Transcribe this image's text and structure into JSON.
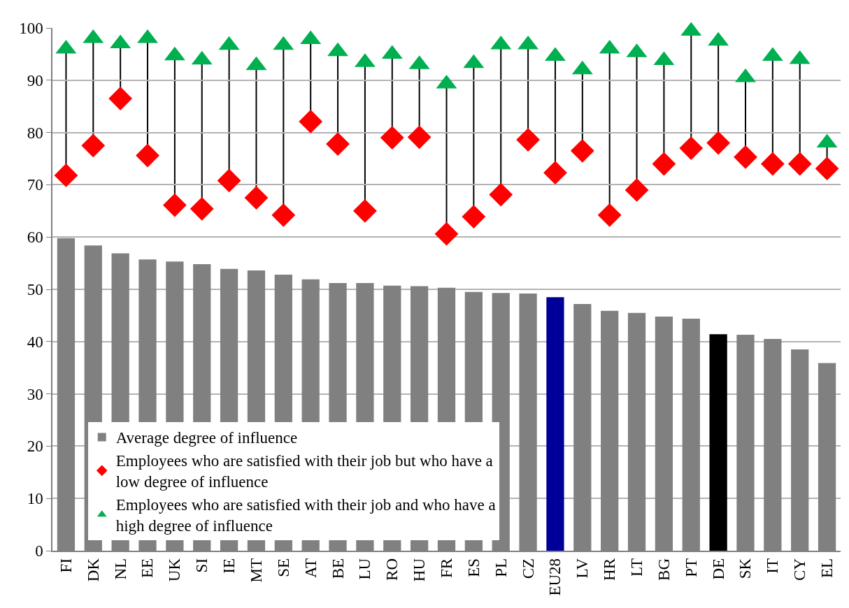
{
  "chart_data": {
    "type": "bar",
    "categories": [
      "FI",
      "DK",
      "NL",
      "EE",
      "UK",
      "SI",
      "IE",
      "MT",
      "SE",
      "AT",
      "BE",
      "LU",
      "RO",
      "HU",
      "FR",
      "ES",
      "PL",
      "CZ",
      "EU28",
      "LV",
      "HR",
      "LT",
      "BG",
      "PT",
      "DE",
      "SK",
      "IT",
      "CY",
      "EL"
    ],
    "series": [
      {
        "name": "Average degree of influence",
        "colors": [
          "#808080",
          "#808080",
          "#808080",
          "#808080",
          "#808080",
          "#808080",
          "#808080",
          "#808080",
          "#808080",
          "#808080",
          "#808080",
          "#808080",
          "#808080",
          "#808080",
          "#808080",
          "#808080",
          "#808080",
          "#808080",
          "#000099",
          "#808080",
          "#808080",
          "#808080",
          "#808080",
          "#808080",
          "#000000",
          "#808080",
          "#808080",
          "#808080",
          "#808080"
        ],
        "values": [
          59.8,
          58.4,
          56.9,
          55.7,
          55.3,
          54.8,
          53.9,
          53.6,
          52.8,
          51.9,
          51.2,
          51.2,
          50.7,
          50.6,
          50.3,
          49.5,
          49.3,
          49.2,
          48.5,
          47.2,
          45.9,
          45.5,
          44.8,
          44.4,
          41.4,
          41.3,
          40.5,
          38.5,
          35.9
        ]
      },
      {
        "name": "Employees who are satisfied with their job but who have a low degree of influence",
        "type": "scatter",
        "marker": "diamond",
        "color": "#ff0000",
        "values": [
          71.8,
          77.5,
          86.5,
          75.6,
          66.1,
          65.4,
          70.8,
          67.5,
          64.2,
          82.1,
          77.8,
          65,
          79,
          79.1,
          60.6,
          63.9,
          68.1,
          78.6,
          72.3,
          76.5,
          64.2,
          69,
          74,
          77,
          78,
          75.3,
          74,
          74,
          73.1
        ]
      },
      {
        "name": "Employees who are satisfied with their job and who have a high degree of influence",
        "type": "scatter",
        "marker": "triangle",
        "color": "#00b050",
        "values": [
          96,
          98,
          97,
          98,
          94.7,
          93.9,
          96.7,
          92.8,
          96.7,
          97.8,
          95.5,
          93.4,
          95,
          93,
          89.3,
          93.2,
          96.8,
          96.8,
          94.6,
          92,
          96,
          95.3,
          93.8,
          99.4,
          97.5,
          90.5,
          94.6,
          94,
          78
        ]
      }
    ],
    "ylim": [
      0,
      100
    ],
    "yticks": [
      0,
      10,
      20,
      30,
      40,
      50,
      60,
      70,
      80,
      90,
      100
    ],
    "grid": "y",
    "legend": "bottom left"
  }
}
